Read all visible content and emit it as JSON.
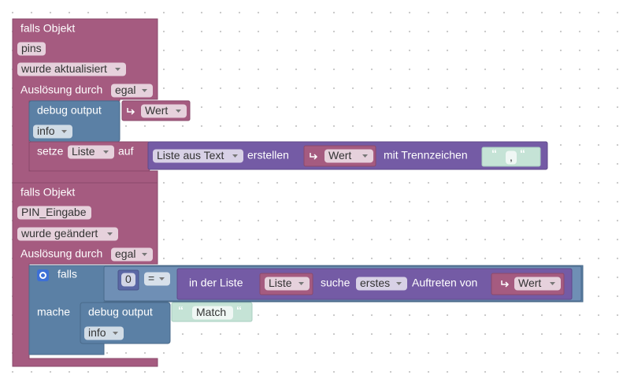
{
  "blocks": [
    {
      "header": "falls Objekt",
      "object_id": "pins",
      "event": "wurde aktualisiert",
      "trigger_label": "Auslösung durch",
      "trigger": "egal",
      "debug": {
        "label": "debug output",
        "value": "Wert",
        "level": "info"
      },
      "set": {
        "label": "setze",
        "variable": "Liste",
        "to": "auf",
        "function": "Liste aus Text",
        "action": "erstellen",
        "input": "Wert",
        "separator_label": "mit Trennzeichen",
        "separator": ","
      }
    },
    {
      "header": "falls Objekt",
      "object_id": "PIN_Eingabe",
      "event": "wurde geändert",
      "trigger_label": "Auslösung durch",
      "trigger": "egal",
      "if": {
        "label": "falls",
        "number": "0",
        "operator": "=",
        "list_label": "in der Liste",
        "list": "Liste",
        "find_label": "suche",
        "find": "erstes",
        "occurrence_label": "Auftreten von",
        "item": "Wert",
        "do_label": "mache"
      },
      "debug": {
        "label": "debug output",
        "value": "Match",
        "level": "info"
      }
    }
  ]
}
